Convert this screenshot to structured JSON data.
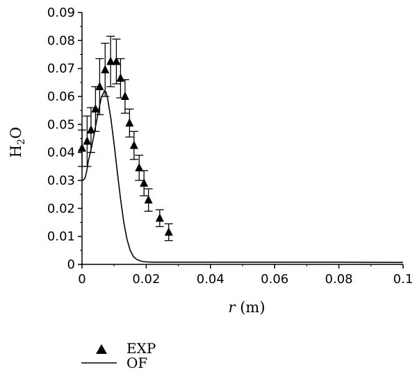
{
  "chart_data": {
    "type": "scatter",
    "xlabel": "r (m)",
    "xlabel_var": "r",
    "xlabel_unit": " (m)",
    "ylabel": "H2O",
    "ylabel_parts": {
      "base": "H",
      "sub": "2",
      "rest": "O"
    },
    "xlim": [
      0,
      0.1
    ],
    "ylim": [
      0,
      0.09
    ],
    "x_ticks": [
      0,
      0.02,
      0.04,
      0.06,
      0.08,
      0.1
    ],
    "x_tick_labels": [
      "0",
      "0.02",
      "0.04",
      "0.06",
      "0.08",
      "0.1"
    ],
    "y_ticks": [
      0,
      0.01,
      0.02,
      0.03,
      0.04,
      0.05,
      0.06,
      0.07,
      0.08,
      0.09
    ],
    "y_tick_labels": [
      "0",
      "0.01",
      "0.02",
      "0.03",
      "0.04",
      "0.05",
      "0.06",
      "0.07",
      "0.08",
      "0.09"
    ],
    "grid": false,
    "legend_position": "bottom-left",
    "series": [
      {
        "name": "EXP",
        "kind": "scatter-errorbar",
        "marker": "triangle",
        "x": [
          0.0,
          0.0016,
          0.0028,
          0.0042,
          0.0055,
          0.0072,
          0.0089,
          0.0107,
          0.012,
          0.0134,
          0.0148,
          0.0162,
          0.0178,
          0.0193,
          0.0207,
          0.0242,
          0.027
        ],
        "y": [
          0.0415,
          0.044,
          0.048,
          0.0555,
          0.0635,
          0.0695,
          0.0725,
          0.0725,
          0.0665,
          0.06,
          0.0505,
          0.0425,
          0.0345,
          0.029,
          0.023,
          0.0165,
          0.0115
        ],
        "err": [
          0.0065,
          0.009,
          0.008,
          0.008,
          0.01,
          0.0095,
          0.009,
          0.008,
          0.007,
          0.006,
          0.005,
          0.005,
          0.0045,
          0.0045,
          0.004,
          0.003,
          0.003
        ]
      },
      {
        "name": "OF",
        "kind": "line",
        "x": [
          0,
          0.0005,
          0.001,
          0.0015,
          0.002,
          0.003,
          0.004,
          0.005,
          0.006,
          0.007,
          0.0075,
          0.008,
          0.009,
          0.01,
          0.011,
          0.012,
          0.013,
          0.014,
          0.015,
          0.016,
          0.017,
          0.018,
          0.019,
          0.02,
          0.022,
          0.025,
          0.03,
          0.04,
          0.06,
          0.08,
          0.1
        ],
        "y": [
          0.03,
          0.0302,
          0.031,
          0.0335,
          0.037,
          0.042,
          0.048,
          0.054,
          0.0595,
          0.062,
          0.0615,
          0.059,
          0.052,
          0.043,
          0.033,
          0.0235,
          0.015,
          0.009,
          0.005,
          0.0028,
          0.0018,
          0.0013,
          0.001,
          0.0009,
          0.0008,
          0.0008,
          0.0008,
          0.0008,
          0.0008,
          0.0008,
          0.0007
        ]
      }
    ]
  }
}
